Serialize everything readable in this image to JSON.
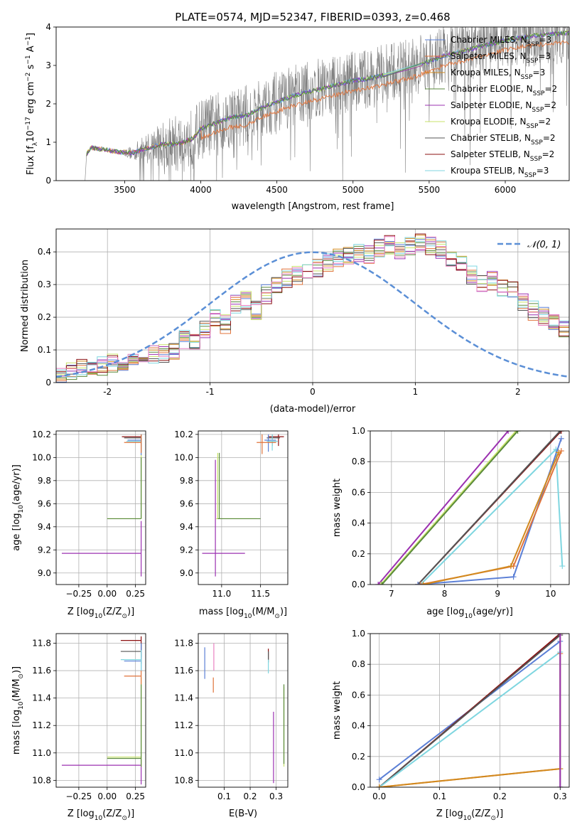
{
  "title": "PLATE=0574, MJD=52347, FIBERID=0393, z=0.468",
  "colors": {
    "chabrier_miles": "#5b7fd6",
    "salpeter_miles": "#e0733a",
    "kroupa_miles": "#d28a1e",
    "chabrier_elodie": "#5a8a3c",
    "salpeter_elodie": "#9b30b0",
    "kroupa_elodie": "#c8e36a",
    "chabrier_stelib": "#555555",
    "salpeter_stelib": "#8b1010",
    "kroupa_stelib": "#7fd6e0",
    "data": "#808080",
    "ghost": "#e87fc0",
    "normal": "#5b8fd6"
  },
  "legend_spectrum": [
    {
      "pre": "Chabrier MILES, N",
      "sub": "SSP",
      "post": "=3",
      "color": "chabrier_miles"
    },
    {
      "pre": "Salpeter MILES, N",
      "sub": "SSP",
      "post": "=3",
      "color": "salpeter_miles"
    },
    {
      "pre": "Kroupa MILES, N",
      "sub": "SSP",
      "post": "=3",
      "color": "kroupa_miles"
    },
    {
      "pre": "Chabrier ELODIE, N",
      "sub": "SSP",
      "post": "=2",
      "color": "chabrier_elodie"
    },
    {
      "pre": "Salpeter ELODIE, N",
      "sub": "SSP",
      "post": "=2",
      "color": "salpeter_elodie"
    },
    {
      "pre": "Kroupa ELODIE, N",
      "sub": "SSP",
      "post": "=2",
      "color": "kroupa_elodie"
    },
    {
      "pre": "Chabrier STELIB, N",
      "sub": "SSP",
      "post": "=2",
      "color": "chabrier_stelib"
    },
    {
      "pre": "Salpeter STELIB, N",
      "sub": "SSP",
      "post": "=2",
      "color": "salpeter_stelib"
    },
    {
      "pre": "Kroupa STELIB, N",
      "sub": "SSP",
      "post": "=3",
      "color": "kroupa_stelib"
    }
  ],
  "legend_hist": "𝒩(0, 1)",
  "chart_data": [
    {
      "id": "spectrum",
      "type": "line",
      "xlabel": "wavelength [Angstrom, rest frame]",
      "ylabel_pre": "Flux [f",
      "ylabel_sub": "λ",
      "ylabel_mid": "10",
      "ylabel_sup1": "−17",
      "ylabel_mid2": " erg cm",
      "ylabel_sup2": "−2",
      "ylabel_mid3": " s",
      "ylabel_sup3": "−1",
      "ylabel_mid4": " A",
      "ylabel_sup4": "−1",
      "ylabel_end": "]",
      "xlim": [
        3050,
        6420
      ],
      "ylim": [
        0,
        4
      ],
      "xticks": [
        3500,
        4000,
        4500,
        5000,
        5500,
        6000
      ],
      "yticks": [
        0,
        1,
        2,
        3,
        4
      ],
      "grid": false,
      "legend": "right",
      "data_range": [
        3240,
        6420
      ],
      "model_continuum": [
        [
          3240,
          0.0
        ],
        [
          3250,
          0.7
        ],
        [
          3280,
          0.85
        ],
        [
          3350,
          0.82
        ],
        [
          3450,
          0.75
        ],
        [
          3550,
          0.72
        ],
        [
          3650,
          0.85
        ],
        [
          3750,
          0.95
        ],
        [
          3850,
          0.95
        ],
        [
          3950,
          1.1
        ],
        [
          4000,
          1.35
        ],
        [
          4100,
          1.5
        ],
        [
          4200,
          1.65
        ],
        [
          4300,
          1.7
        ],
        [
          4400,
          1.9
        ],
        [
          4500,
          2.05
        ],
        [
          4600,
          2.2
        ],
        [
          4700,
          2.3
        ],
        [
          4800,
          2.4
        ],
        [
          4900,
          2.5
        ],
        [
          5000,
          2.6
        ],
        [
          5100,
          2.65
        ],
        [
          5200,
          2.75
        ],
        [
          5300,
          2.85
        ],
        [
          5400,
          2.95
        ],
        [
          5500,
          3.1
        ],
        [
          5600,
          3.25
        ],
        [
          5700,
          3.35
        ],
        [
          5800,
          3.45
        ],
        [
          5900,
          3.55
        ],
        [
          6000,
          3.65
        ],
        [
          6100,
          3.72
        ],
        [
          6200,
          3.78
        ],
        [
          6300,
          3.82
        ],
        [
          6420,
          3.85
        ]
      ]
    },
    {
      "id": "residuals",
      "type": "line",
      "xlabel": "(data-model)/error",
      "ylabel": "Normed distribution",
      "xlim": [
        -2.5,
        2.5
      ],
      "ylim": [
        0,
        0.47
      ],
      "xticks": [
        -2,
        -1,
        0,
        1,
        2
      ],
      "yticks": [
        0.0,
        0.1,
        0.2,
        0.3,
        0.4
      ],
      "grid": true,
      "legend": "top-right",
      "bin_width": 0.1,
      "base_hist": [
        0.025,
        0.03,
        0.035,
        0.045,
        0.04,
        0.05,
        0.06,
        0.055,
        0.07,
        0.075,
        0.085,
        0.09,
        0.1,
        0.13,
        0.12,
        0.16,
        0.2,
        0.18,
        0.24,
        0.25,
        0.22,
        0.27,
        0.3,
        0.32,
        0.33,
        0.34,
        0.35,
        0.37,
        0.38,
        0.39,
        0.4,
        0.39,
        0.41,
        0.42,
        0.4,
        0.42,
        0.43,
        0.42,
        0.41,
        0.38,
        0.37,
        0.33,
        0.3,
        0.31,
        0.29,
        0.28,
        0.25,
        0.22,
        0.2,
        0.18,
        0.16,
        0.14,
        0.12,
        0.11,
        0.09,
        0.08,
        0.07,
        0.06,
        0.05,
        0.04
      ]
    },
    {
      "id": "age_Z",
      "type": "scatter",
      "xlabel_pre": "Z [log",
      "xlabel_sub": "10",
      "xlabel_post": "(Z/Z",
      "xlabel_sub2": "⊙",
      "xlabel_end": ")]",
      "ylabel_pre": "age  [log",
      "ylabel_sub": "10",
      "ylabel_post": "(age/yr)]",
      "xlim": [
        -0.45,
        0.34
      ],
      "ylim": [
        8.9,
        10.23
      ],
      "xticks": [
        -0.25,
        0.0,
        0.25
      ],
      "xticklabels": [
        "−0.25",
        "0.00",
        "0.25"
      ],
      "yticks": [
        9.0,
        9.2,
        9.4,
        9.6,
        9.8,
        10.0,
        10.2
      ],
      "yticklabels": [
        "9.0",
        "9.2",
        "9.4",
        "9.6",
        "9.8",
        "10.0",
        "10.2"
      ],
      "grid": true,
      "points": [
        {
          "s": "salpeter_elodie",
          "x": 0.3,
          "y": 9.17,
          "xl": -0.4,
          "xh": 0.3,
          "yl": 8.97,
          "yh": 9.45
        },
        {
          "s": "kroupa_elodie",
          "x": 0.3,
          "y": 9.47,
          "xl": 0.0,
          "xh": 0.3,
          "yl": 9.47,
          "yh": 10.1
        },
        {
          "s": "chabrier_elodie",
          "x": 0.3,
          "y": 9.47,
          "xl": 0.0,
          "xh": 0.3,
          "yl": 9.47,
          "yh": 10.0
        },
        {
          "s": "salpeter_stelib",
          "x": 0.3,
          "y": 10.18,
          "xl": 0.13,
          "xh": 0.3,
          "yl": 10.05,
          "yh": 10.2
        },
        {
          "s": "chabrier_stelib",
          "x": 0.3,
          "y": 10.17,
          "xl": 0.15,
          "xh": 0.3,
          "yl": 10.1,
          "yh": 10.2
        },
        {
          "s": "chabrier_miles",
          "x": 0.3,
          "y": 10.15,
          "xl": 0.18,
          "xh": 0.3,
          "yl": 10.02,
          "yh": 10.2
        },
        {
          "s": "kroupa_stelib",
          "x": 0.3,
          "y": 10.14,
          "xl": 0.17,
          "xh": 0.3,
          "yl": 10.05,
          "yh": 10.2
        },
        {
          "s": "salpeter_miles",
          "x": 0.3,
          "y": 10.13,
          "xl": 0.15,
          "xh": 0.3,
          "yl": 10.04,
          "yh": 10.2
        }
      ]
    },
    {
      "id": "age_mass",
      "type": "scatter",
      "xlabel_pre": "mass [log",
      "xlabel_sub": "10",
      "xlabel_post": "(M/M",
      "xlabel_sub2": "⊙",
      "xlabel_end": ")]",
      "xlim": [
        10.7,
        11.85
      ],
      "ylim": [
        8.9,
        10.23
      ],
      "xticks": [
        11.0,
        11.5
      ],
      "xticklabels": [
        "11.0",
        "11.5"
      ],
      "yticks": [
        9.0,
        9.2,
        9.4,
        9.6,
        9.8,
        10.0,
        10.2
      ],
      "yticklabels": [
        "9.0",
        "9.2",
        "9.4",
        "9.6",
        "9.8",
        "10.0",
        "10.2"
      ],
      "grid": true,
      "points": [
        {
          "s": "salpeter_elodie",
          "x": 10.92,
          "y": 9.17,
          "xl": 10.75,
          "xh": 11.3,
          "yl": 8.97,
          "yh": 9.98
        },
        {
          "s": "kroupa_elodie",
          "x": 10.95,
          "y": 9.47,
          "xl": 10.93,
          "xh": 11.45,
          "yl": 9.47,
          "yh": 10.04
        },
        {
          "s": "chabrier_elodie",
          "x": 10.97,
          "y": 9.47,
          "xl": 10.95,
          "xh": 11.5,
          "yl": 9.47,
          "yh": 10.04
        },
        {
          "s": "salpeter_stelib",
          "x": 11.73,
          "y": 10.18,
          "xl": 11.6,
          "xh": 11.8,
          "yl": 10.1,
          "yh": 10.2
        },
        {
          "s": "chabrier_stelib",
          "x": 11.65,
          "y": 10.17,
          "xl": 11.58,
          "xh": 11.75,
          "yl": 10.1,
          "yh": 10.2
        },
        {
          "s": "chabrier_miles",
          "x": 11.6,
          "y": 10.15,
          "xl": 11.55,
          "xh": 11.7,
          "yl": 10.05,
          "yh": 10.2
        },
        {
          "s": "kroupa_stelib",
          "x": 11.65,
          "y": 10.14,
          "xl": 11.58,
          "xh": 11.72,
          "yl": 10.06,
          "yh": 10.2
        },
        {
          "s": "salpeter_miles",
          "x": 11.52,
          "y": 10.13,
          "xl": 11.45,
          "xh": 11.7,
          "yl": 10.03,
          "yh": 10.2
        }
      ]
    },
    {
      "id": "weight_age",
      "type": "line",
      "xlabel_pre": "age  [log",
      "xlabel_sub": "10",
      "xlabel_post": "(age/yr)]",
      "ylabel": "mass weight",
      "xlim": [
        6.6,
        10.35
      ],
      "ylim": [
        0.0,
        1.0
      ],
      "xticks": [
        7,
        8,
        9,
        10
      ],
      "xticklabels": [
        "7",
        "8",
        "9",
        "10"
      ],
      "yticks": [
        0.0,
        0.2,
        0.4,
        0.6,
        0.8,
        1.0
      ],
      "yticklabels": [
        "0.0",
        "0.2",
        "0.4",
        "0.6",
        "0.8",
        "1.0"
      ],
      "grid": true,
      "series": [
        {
          "s": "salpeter_elodie",
          "x": [
            6.75,
            9.2
          ],
          "y": [
            0.0,
            1.0
          ]
        },
        {
          "s": "kroupa_elodie",
          "x": [
            6.8,
            9.35
          ],
          "y": [
            0.0,
            1.0
          ]
        },
        {
          "s": "chabrier_elodie",
          "x": [
            6.82,
            9.38
          ],
          "y": [
            0.0,
            1.0
          ]
        },
        {
          "s": "salpeter_stelib",
          "x": [
            7.5,
            10.2
          ],
          "y": [
            0.0,
            1.0
          ]
        },
        {
          "s": "chabrier_stelib",
          "x": [
            7.5,
            10.18
          ],
          "y": [
            0.0,
            1.0
          ]
        },
        {
          "s": "kroupa_stelib",
          "x": [
            7.55,
            10.1,
            10.22
          ],
          "y": [
            0.0,
            0.88,
            0.12
          ]
        },
        {
          "s": "chabrier_miles",
          "x": [
            7.5,
            9.3,
            10.2
          ],
          "y": [
            0.0,
            0.05,
            0.95
          ]
        },
        {
          "s": "salpeter_miles",
          "x": [
            7.55,
            9.3,
            10.2
          ],
          "y": [
            0.0,
            0.12,
            0.87
          ]
        },
        {
          "s": "kroupa_miles",
          "x": [
            7.6,
            9.25,
            10.15
          ],
          "y": [
            0.0,
            0.12,
            0.86
          ]
        }
      ]
    },
    {
      "id": "mass_Z",
      "type": "scatter",
      "xlabel_pre": "Z [log",
      "xlabel_sub": "10",
      "xlabel_post": "(Z/Z",
      "xlabel_sub2": "⊙",
      "xlabel_end": ")]",
      "ylabel_pre": "mass [log",
      "ylabel_sub": "10",
      "ylabel_post": "(M/M",
      "ylabel_sub2": "⊙",
      "ylabel_end": ")]",
      "xlim": [
        -0.45,
        0.34
      ],
      "ylim": [
        10.75,
        11.87
      ],
      "xticks": [
        -0.25,
        0.0,
        0.25
      ],
      "xticklabels": [
        "−0.25",
        "0.00",
        "0.25"
      ],
      "yticks": [
        10.8,
        11.0,
        11.2,
        11.4,
        11.6,
        11.8
      ],
      "yticklabels": [
        "10.8",
        "11.0",
        "11.2",
        "11.4",
        "11.6",
        "11.8"
      ],
      "grid": true,
      "points": [
        {
          "s": "salpeter_elodie",
          "x": 0.3,
          "y": 10.91,
          "xl": -0.4,
          "xh": 0.3,
          "yl": 10.77,
          "yh": 10.95
        },
        {
          "s": "kroupa_elodie",
          "x": 0.3,
          "y": 10.97,
          "xl": 0.0,
          "xh": 0.3,
          "yl": 10.9,
          "yh": 11.55
        },
        {
          "s": "chabrier_elodie",
          "x": 0.3,
          "y": 10.96,
          "xl": 0.0,
          "xh": 0.3,
          "yl": 10.9,
          "yh": 11.5
        },
        {
          "s": "salpeter_stelib",
          "x": 0.3,
          "y": 11.82,
          "xl": 0.12,
          "xh": 0.3,
          "yl": 11.7,
          "yh": 11.85
        },
        {
          "s": "chabrier_stelib",
          "x": 0.3,
          "y": 11.74,
          "xl": 0.12,
          "xh": 0.3,
          "yl": 11.65,
          "yh": 11.8
        },
        {
          "s": "chabrier_miles",
          "x": 0.3,
          "y": 11.67,
          "xl": 0.15,
          "xh": 0.3,
          "yl": 11.6,
          "yh": 11.8
        },
        {
          "s": "kroupa_stelib",
          "x": 0.3,
          "y": 11.68,
          "xl": 0.12,
          "xh": 0.3,
          "yl": 11.6,
          "yh": 11.75
        },
        {
          "s": "salpeter_miles",
          "x": 0.3,
          "y": 11.56,
          "xl": 0.15,
          "xh": 0.3,
          "yl": 11.5,
          "yh": 11.6
        }
      ]
    },
    {
      "id": "mass_EBV",
      "type": "scatter",
      "xlabel": "E(B-V)",
      "xlim": [
        0.0,
        0.345
      ],
      "ylim": [
        10.75,
        11.87
      ],
      "xticks": [
        0.1,
        0.2,
        0.3
      ],
      "xticklabels": [
        "0.1",
        "0.2",
        "0.3"
      ],
      "yticks": [
        10.8,
        11.0,
        11.2,
        11.4,
        11.6,
        11.8
      ],
      "yticklabels": [
        "10.8",
        "11.0",
        "11.2",
        "11.4",
        "11.6",
        "11.8"
      ],
      "grid": true,
      "points": [
        {
          "s": "salpeter_elodie",
          "x": 0.29,
          "y": 11.0,
          "yl": 10.78,
          "yh": 11.3
        },
        {
          "s": "kroupa_elodie",
          "x": 0.33,
          "y": 11.2,
          "yl": 10.9,
          "yh": 11.48
        },
        {
          "s": "chabrier_elodie",
          "x": 0.33,
          "y": 11.25,
          "yl": 10.92,
          "yh": 11.5
        },
        {
          "s": "salpeter_stelib",
          "x": 0.27,
          "y": 11.72,
          "yl": 11.68,
          "yh": 11.76
        },
        {
          "s": "chabrier_stelib",
          "x": 0.27,
          "y": 11.7,
          "yl": 11.66,
          "yh": 11.74
        },
        {
          "s": "chabrier_miles",
          "x": 0.025,
          "y": 11.65,
          "yl": 11.54,
          "yh": 11.77
        },
        {
          "s": "kroupa_stelib",
          "x": 0.27,
          "y": 11.62,
          "yl": 11.58,
          "yh": 11.68
        },
        {
          "s": "salpeter_miles",
          "x": 0.058,
          "y": 11.5,
          "yl": 11.44,
          "yh": 11.55
        },
        {
          "s": "ghost",
          "x": 0.06,
          "y": 11.7,
          "yl": 11.6,
          "yh": 11.8
        }
      ]
    },
    {
      "id": "weight_Z",
      "type": "line",
      "xlabel_pre": "Z [log",
      "xlabel_sub": "10",
      "xlabel_post": "(Z/Z",
      "xlabel_sub2": "⊙",
      "xlabel_end": ")]",
      "ylabel": "mass weight",
      "xlim": [
        -0.015,
        0.315
      ],
      "ylim": [
        0.0,
        1.0
      ],
      "xticks": [
        0.0,
        0.1,
        0.2,
        0.3
      ],
      "xticklabels": [
        "0.0",
        "0.1",
        "0.2",
        "0.3"
      ],
      "yticks": [
        0.0,
        0.2,
        0.4,
        0.6,
        0.8,
        1.0
      ],
      "yticklabels": [
        "0.0",
        "0.2",
        "0.4",
        "0.6",
        "0.8",
        "1.0"
      ],
      "grid": true,
      "series": [
        {
          "s": "chabrier_miles",
          "x": [
            0.0,
            0.3,
            0.3
          ],
          "y": [
            0.05,
            0.95,
            0.0
          ]
        },
        {
          "s": "salpeter_stelib",
          "x": [
            0.0,
            0.3
          ],
          "y": [
            0.0,
            1.0
          ]
        },
        {
          "s": "chabrier_stelib",
          "x": [
            0.0,
            0.3
          ],
          "y": [
            0.0,
            0.99
          ]
        },
        {
          "s": "kroupa_stelib",
          "x": [
            0.0,
            0.3,
            0.3
          ],
          "y": [
            0.0,
            0.88,
            0.12
          ]
        },
        {
          "s": "salpeter_miles",
          "x": [
            0.0,
            0.3,
            0.3
          ],
          "y": [
            0.0,
            0.12,
            0.87
          ]
        },
        {
          "s": "kroupa_miles",
          "x": [
            0.0,
            0.3
          ],
          "y": [
            0.0,
            0.12
          ]
        },
        {
          "s": "kroupa_elodie",
          "x": [
            0.3,
            0.3
          ],
          "y": [
            0.0,
            1.0
          ]
        },
        {
          "s": "salpeter_elodie",
          "x": [
            0.3,
            0.3
          ],
          "y": [
            0.0,
            1.0
          ]
        }
      ]
    }
  ]
}
